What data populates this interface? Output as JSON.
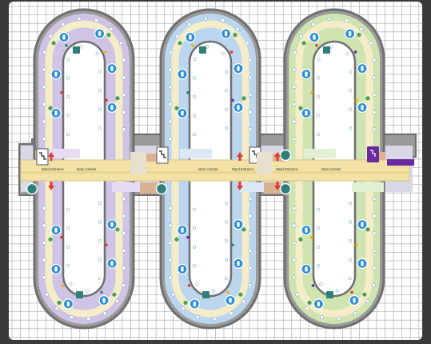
{
  "map": {
    "labels": {
      "ward_entrance": "Ward Entrance",
      "main_corridor": "Main corridor"
    },
    "colors": {
      "background": "#3a3a3a",
      "paper": "#ffffff",
      "grid": "#b9b9b9",
      "outline": "#6f6f6f",
      "wall": "#9a9a9a",
      "corridor": "#f3e2a6",
      "ring_left": "#cfc3e6",
      "ring_middle": "#bcd6f0",
      "ring_right": "#cfe4b0",
      "inner_path": "#f5ecc8",
      "bed": "#2d8fd6",
      "plant": "#46a05a",
      "marker": "#e03a2f",
      "teal": "#2f7f7a",
      "accent_purple": "#6a2aa0",
      "stair_box": "#ffffff",
      "room_tan": "#d9b293"
    },
    "icons": [
      "stairs-icon",
      "elevator-icon",
      "entrance-arrow-icon",
      "bed-icon",
      "plant-icon",
      "dot-icon"
    ],
    "wards": [
      {
        "id": "left",
        "tone": "ring_left"
      },
      {
        "id": "middle",
        "tone": "ring_middle"
      },
      {
        "id": "right",
        "tone": "ring_right"
      }
    ]
  }
}
